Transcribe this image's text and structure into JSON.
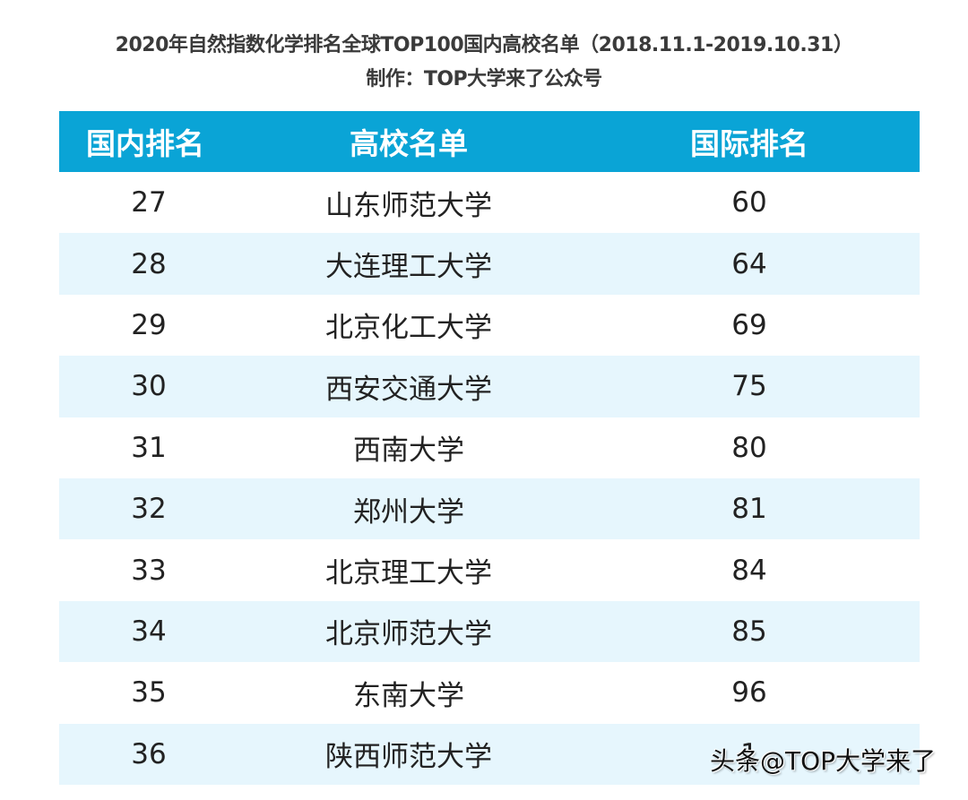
{
  "header": {
    "title": "2020年自然指数化学排名全球TOP100国内高校名单（2018.11.1-2019.10.31）",
    "subtitle": "制作：TOP大学来了公众号"
  },
  "table": {
    "columns": [
      "国内排名",
      "高校名单",
      "国际排名"
    ],
    "rows": [
      {
        "domestic": "27",
        "name": "山东师范大学",
        "intl": "60"
      },
      {
        "domestic": "28",
        "name": "大连理工大学",
        "intl": "64"
      },
      {
        "domestic": "29",
        "name": "北京化工大学",
        "intl": "69"
      },
      {
        "domestic": "30",
        "name": "西安交通大学",
        "intl": "75"
      },
      {
        "domestic": "31",
        "name": "西南大学",
        "intl": "80"
      },
      {
        "domestic": "32",
        "name": "郑州大学",
        "intl": "81"
      },
      {
        "domestic": "33",
        "name": "北京理工大学",
        "intl": "84"
      },
      {
        "domestic": "34",
        "name": "北京师范大学",
        "intl": "85"
      },
      {
        "domestic": "35",
        "name": "东南大学",
        "intl": "96"
      },
      {
        "domestic": "36",
        "name": "陕西师范大学",
        "intl": "1"
      }
    ]
  },
  "watermark": "头条@TOP大学来了",
  "colors": {
    "header_bg": "#0aa4d6",
    "alt_row_bg": "#e6f6fd"
  }
}
